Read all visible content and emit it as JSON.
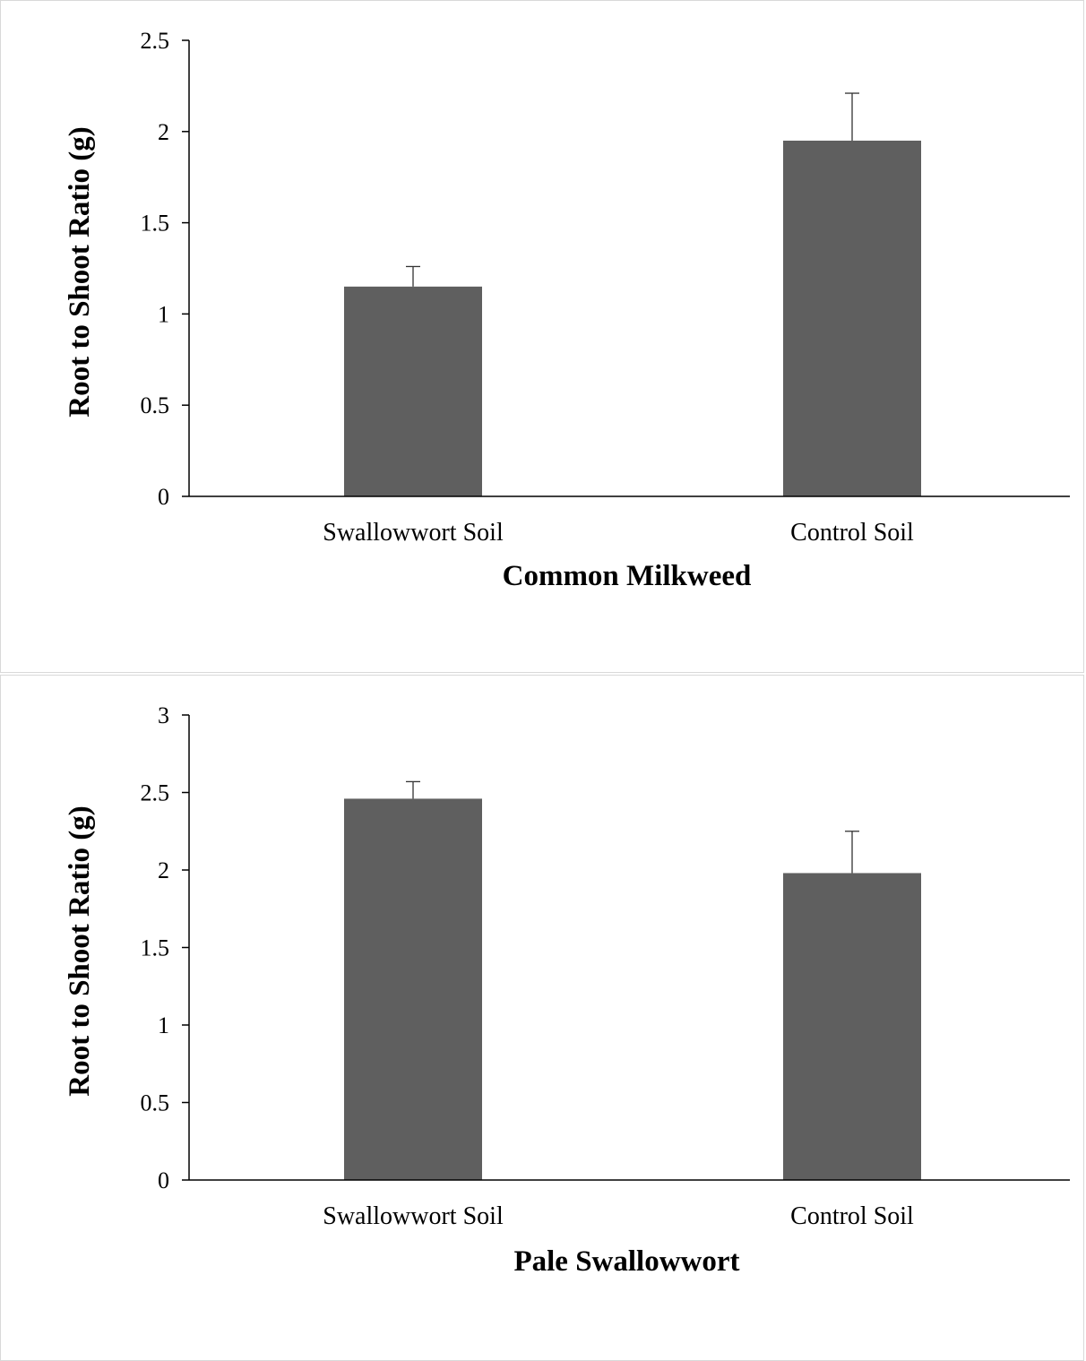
{
  "chart_data": [
    {
      "type": "bar",
      "categories": [
        "Swallowwort Soil",
        "Control Soil"
      ],
      "values": [
        1.15,
        1.95
      ],
      "error_upper": [
        0.11,
        0.26
      ],
      "xlabel": "Common Milkweed",
      "ylabel": "Root to Shoot Ratio (g)",
      "ylim": [
        0,
        2.5
      ],
      "yticks": [
        "0",
        "0.5",
        "1",
        "1.5",
        "2",
        "2.5"
      ],
      "grid": false,
      "bar_color": "#5f5f5f"
    },
    {
      "type": "bar",
      "categories": [
        "Swallowwort Soil",
        "Control Soil"
      ],
      "values": [
        2.46,
        1.98
      ],
      "error_upper": [
        0.11,
        0.27
      ],
      "xlabel": "Pale Swallowwort",
      "ylabel": "Root to Shoot Ratio (g)",
      "ylim": [
        0,
        3
      ],
      "yticks": [
        "0",
        "0.5",
        "1",
        "1.5",
        "2",
        "2.5",
        "3"
      ],
      "grid": false,
      "bar_color": "#5f5f5f"
    }
  ]
}
